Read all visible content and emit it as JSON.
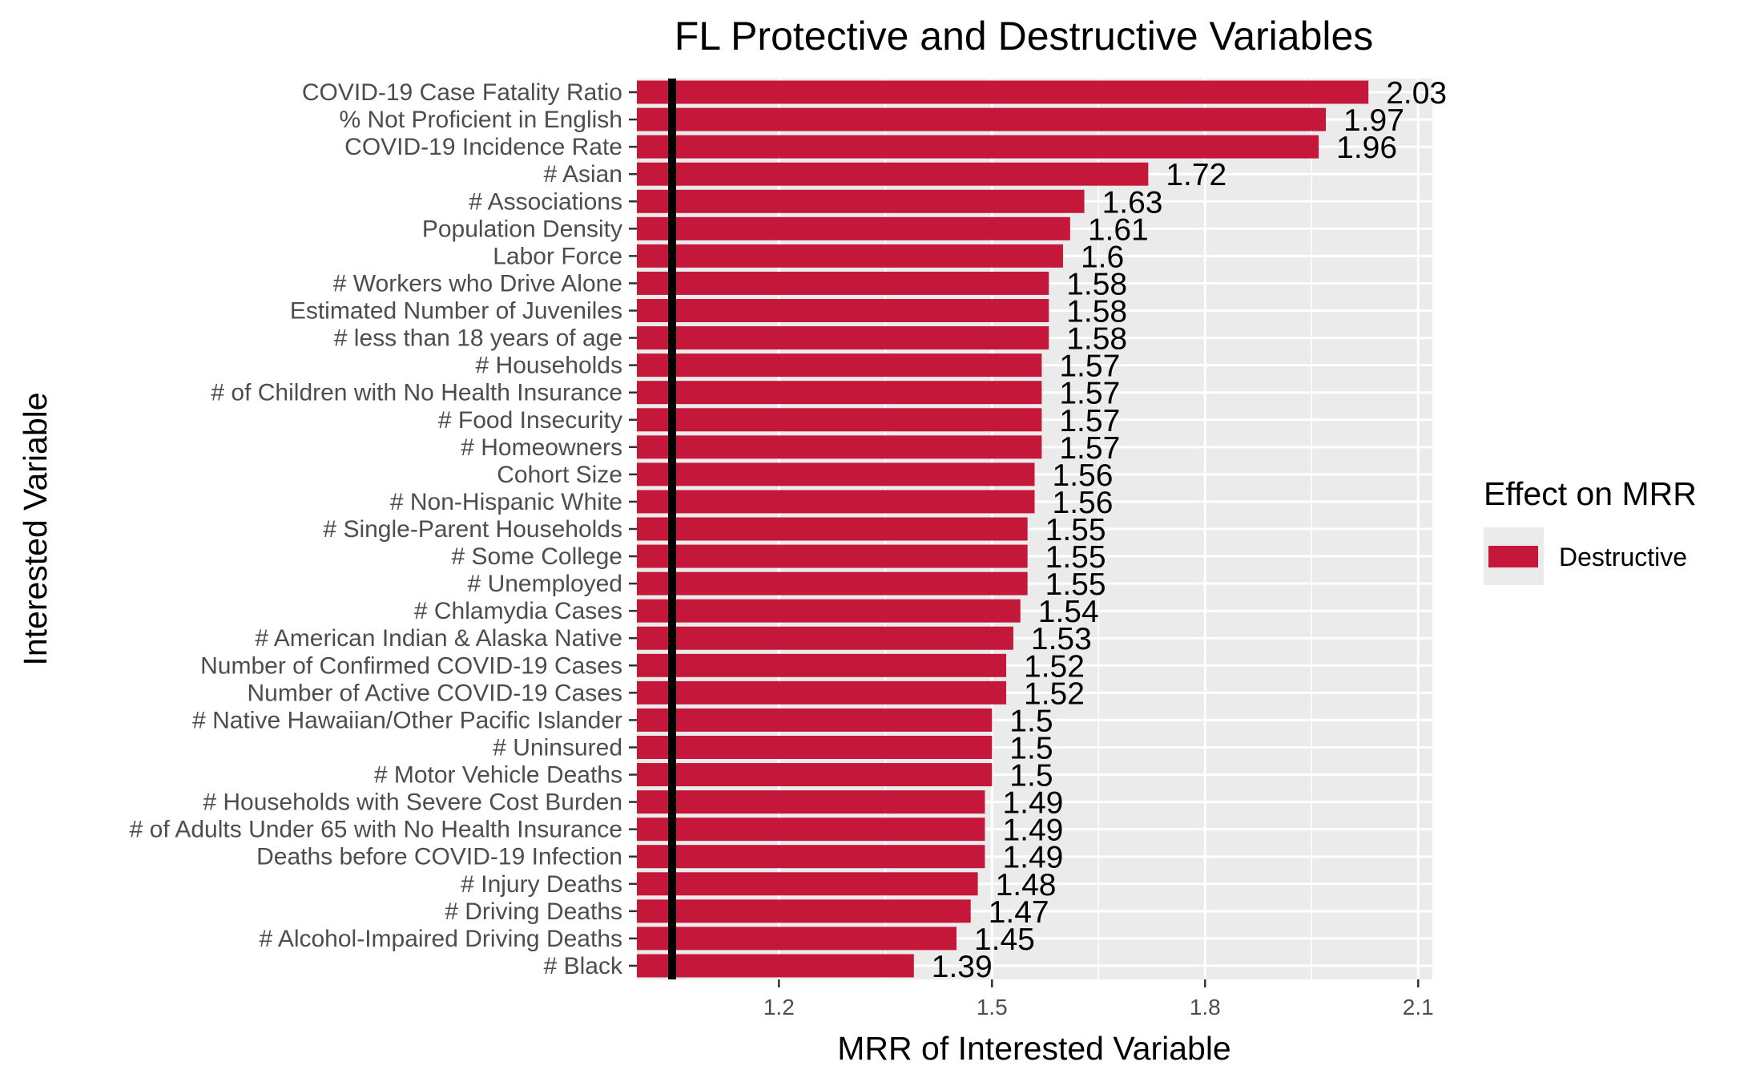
{
  "chart_data": {
    "type": "bar",
    "orientation": "horizontal",
    "title": "FL Protective and Destructive Variables",
    "xlabel": "MRR of Interested Variable",
    "ylabel": "Interested Variable",
    "xlim": [
      1.0,
      2.12
    ],
    "reference_line": 1.0,
    "x_ticks": [
      1.2,
      1.5,
      1.8,
      2.1
    ],
    "x_tick_labels": [
      "1.2",
      "1.5",
      "1.8",
      "2.1"
    ],
    "grid": true,
    "legend": {
      "title": "Effect on MRR",
      "position": "right",
      "entries": [
        {
          "label": "Destructive",
          "color": "#c4173a"
        }
      ]
    },
    "bar_color": "#c4173a",
    "categories": [
      "COVID-19 Case Fatality Ratio",
      "% Not Proficient in English",
      "COVID-19 Incidence Rate",
      "# Asian",
      "# Associations",
      "Population Density",
      "Labor Force",
      "# Workers who Drive Alone",
      "Estimated Number of Juveniles",
      "# less than 18 years of age",
      "# Households",
      "# of Children with No Health Insurance",
      "# Food Insecurity",
      "# Homeowners",
      "Cohort Size",
      "# Non-Hispanic White",
      "# Single-Parent Households",
      "# Some College",
      "# Unemployed",
      "# Chlamydia Cases",
      "# American Indian & Alaska Native",
      "Number of Confirmed COVID-19 Cases",
      "Number of Active COVID-19 Cases",
      "# Native Hawaiian/Other Pacific Islander",
      "# Uninsured",
      "# Motor Vehicle Deaths",
      "# Households with Severe Cost Burden",
      "# of Adults Under 65 with No Health Insurance",
      "Deaths before COVID-19 Infection",
      "# Injury Deaths",
      "# Driving Deaths",
      "# Alcohol-Impaired Driving Deaths",
      "# Black"
    ],
    "values": [
      2.03,
      1.97,
      1.96,
      1.72,
      1.63,
      1.61,
      1.6,
      1.58,
      1.58,
      1.58,
      1.57,
      1.57,
      1.57,
      1.57,
      1.56,
      1.56,
      1.55,
      1.55,
      1.55,
      1.54,
      1.53,
      1.52,
      1.52,
      1.5,
      1.5,
      1.5,
      1.49,
      1.49,
      1.49,
      1.48,
      1.47,
      1.45,
      1.39
    ],
    "value_labels": [
      "2.03",
      "1.97",
      "1.96",
      "1.72",
      "1.63",
      "1.61",
      "1.6",
      "1.58",
      "1.58",
      "1.58",
      "1.57",
      "1.57",
      "1.57",
      "1.57",
      "1.56",
      "1.56",
      "1.55",
      "1.55",
      "1.55",
      "1.54",
      "1.53",
      "1.52",
      "1.52",
      "1.5",
      "1.5",
      "1.5",
      "1.49",
      "1.49",
      "1.49",
      "1.48",
      "1.47",
      "1.45",
      "1.39"
    ]
  }
}
